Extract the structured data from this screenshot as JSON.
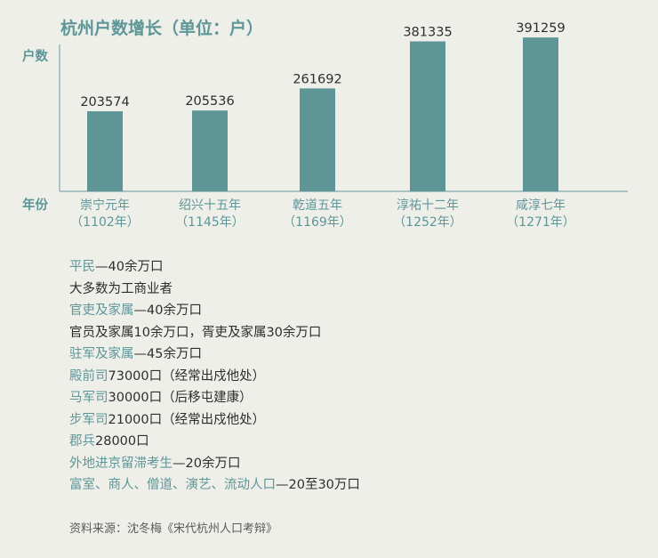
{
  "chart_data": {
    "type": "bar",
    "title": "杭州户数增长（单位：户）",
    "ylabel": "户数",
    "xlabel": "年份",
    "categories": [
      "崇宁元年",
      "绍兴十五年",
      "乾道五年",
      "淳祐十二年",
      "咸淳七年"
    ],
    "category_years": [
      "（1102年）",
      "（1145年）",
      "（1169年）",
      "（1252年）",
      "（1271年）"
    ],
    "values": [
      203574,
      205536,
      261692,
      381335,
      391259
    ],
    "ylim": [
      0,
      430000
    ],
    "grid": false,
    "bar_color": "#5e9597",
    "axis_color": "#7fa8aa"
  },
  "notes": [
    {
      "label": "平民",
      "text": "—40余万口"
    },
    {
      "label": "",
      "text": "大多数为工商业者"
    },
    {
      "label": "官吏及家属",
      "text": "—40余万口"
    },
    {
      "label": "",
      "text": "官员及家属10余万口，胥吏及家属30余万口"
    },
    {
      "label": "驻军及家属",
      "text": "—45余万口"
    },
    {
      "label": "殿前司",
      "text": "73000口（经常出戍他处）"
    },
    {
      "label": "马军司",
      "text": "30000口（后移屯建康）"
    },
    {
      "label": "步军司",
      "text": "21000口（经常出戍他处）"
    },
    {
      "label": "郡兵",
      "text": "28000口"
    },
    {
      "label": "外地进京留滞考生",
      "text": "—20余万口"
    },
    {
      "label": "富室、商人、僧道、演艺、流动人口",
      "text": "—20至30万口"
    }
  ],
  "source": "资料来源：沈冬梅《宋代杭州人口考辩》",
  "colors": {
    "accent": "#5d9698",
    "bar": "#5e9597",
    "background": "#efefea",
    "text": "#2d2d2d"
  }
}
